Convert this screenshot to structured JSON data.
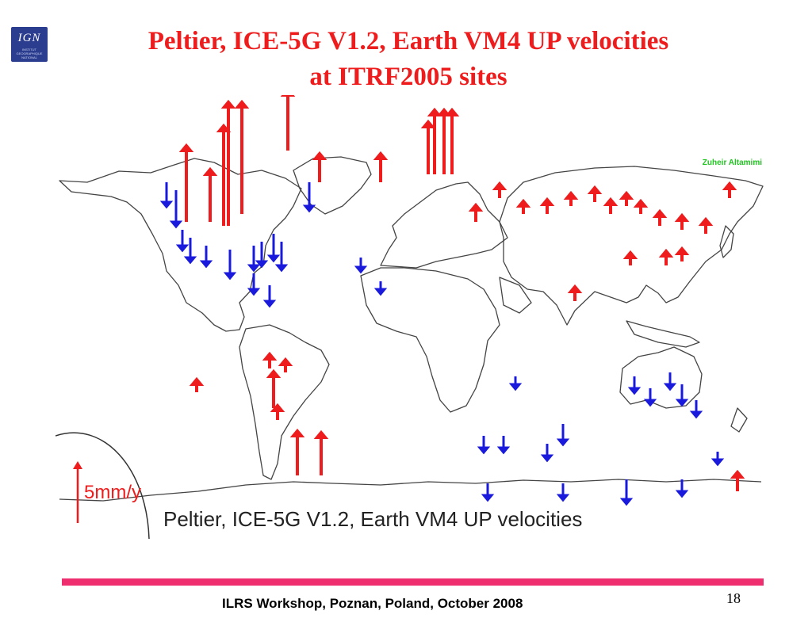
{
  "slide": {
    "title_line1": "Peltier, ICE-5G V1.2, Earth VM4 UP velocities",
    "title_line2": "at ITRF2005 sites",
    "footer": "ILRS Workshop, Poznan, Poland, October 2008",
    "page_number": "18",
    "accent_color": "#ee2e6f",
    "title_color": "#ee1c1c"
  },
  "logo": {
    "text": "IGN",
    "lettering": "INSTITUT GEOGRAPHIQUE NATIONAL",
    "background": "#2b3d8f"
  },
  "map": {
    "credit": "Zuheir Altamimi",
    "scale_label": "5mm/y",
    "caption": "Peltier, ICE-5G V1.2, Earth VM4 UP velocities",
    "uplift_color": "#ee1c1c",
    "subsidence_color": "#1a1adc",
    "coastline_color": "#333333",
    "legend": {
      "uplift": "red arrow up",
      "subsidence": "blue arrow down"
    }
  }
}
